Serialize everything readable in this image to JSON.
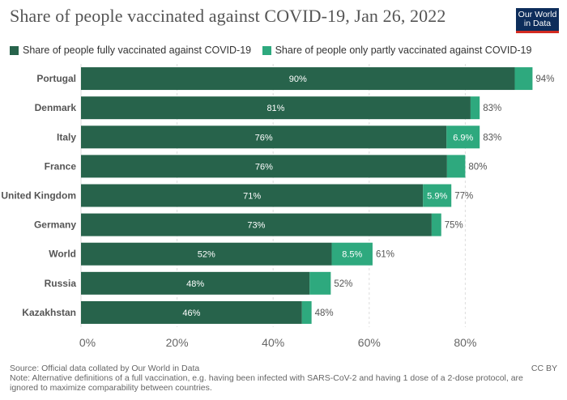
{
  "header": {
    "title": "Share of people vaccinated against COVID-19, Jan 26, 2022",
    "logo_line1": "Our World",
    "logo_line2": "in Data"
  },
  "legend": {
    "full_label": "Share of people fully vaccinated against COVID-19",
    "partial_label": "Share of people only partly vaccinated against COVID-19"
  },
  "colors": {
    "full": "#27634b",
    "partial": "#2ea97e",
    "grid": "#dddddd",
    "axis_text": "#666666"
  },
  "chart_data": {
    "type": "bar",
    "orientation": "horizontal",
    "stacked": true,
    "categories": [
      "Portugal",
      "Denmark",
      "Italy",
      "France",
      "United Kingdom",
      "Germany",
      "World",
      "Russia",
      "Kazakhstan"
    ],
    "series": [
      {
        "name": "Share of people fully vaccinated against COVID-19",
        "values": [
          90.3,
          81.1,
          76.1,
          76.2,
          71.2,
          73.0,
          52.2,
          47.6,
          46.0
        ],
        "labels": [
          "90%",
          "81%",
          "76%",
          "76%",
          "71%",
          "73%",
          "52%",
          "48%",
          "46%"
        ]
      },
      {
        "name": "Share of people only partly vaccinated against COVID-19",
        "values": [
          3.7,
          1.9,
          6.9,
          3.8,
          5.9,
          2.0,
          8.5,
          4.4,
          2.0
        ],
        "labels": [
          "",
          "",
          "6.9%",
          "",
          "5.9%",
          "",
          "8.5%",
          "",
          ""
        ]
      }
    ],
    "totals": [
      "94%",
      "83%",
      "83%",
      "80%",
      "77%",
      "75%",
      "61%",
      "52%",
      "48%"
    ],
    "x_ticks": [
      0,
      20,
      40,
      60,
      80
    ],
    "x_tick_labels": [
      "0%",
      "20%",
      "40%",
      "60%",
      "80%"
    ],
    "xlim": [
      0,
      100
    ]
  },
  "footer": {
    "source": "Source: Official data collated by Our World in Data",
    "note_line1": "Note: Alternative definitions of a full vaccination, e.g. having been infected with SARS-CoV-2 and having 1 dose of a 2-dose protocol, are",
    "note_line2": "ignored to maximize comparability between countries.",
    "license": "CC BY"
  }
}
